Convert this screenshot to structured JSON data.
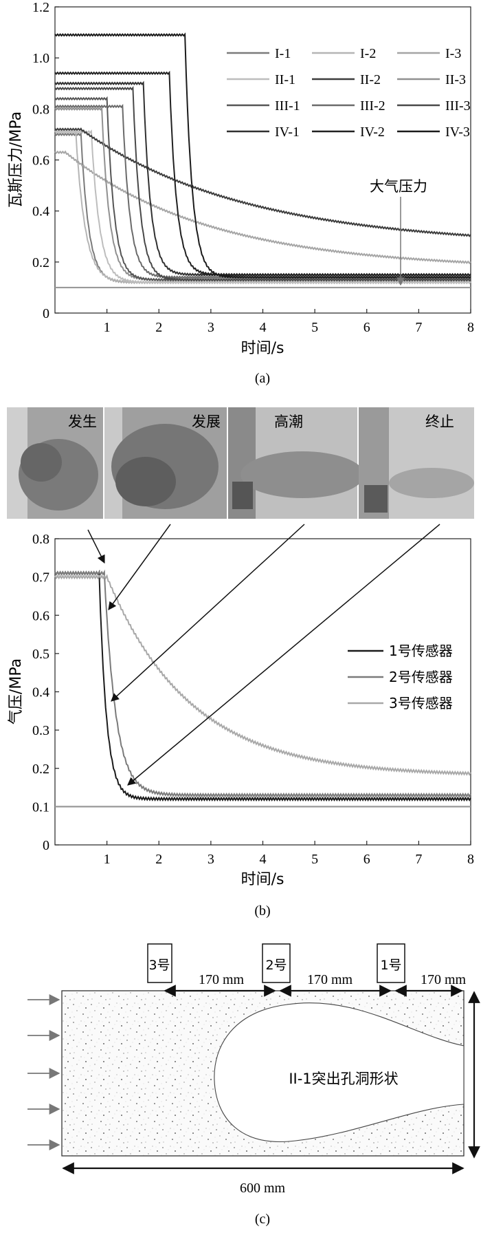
{
  "chart_data": [
    {
      "type": "line",
      "panel_label": "(a)",
      "xlabel": "时间/s",
      "ylabel": "瓦斯压力/MPa",
      "xlim": [
        0,
        8
      ],
      "ylim": [
        0,
        1.2
      ],
      "xticks": [
        "1",
        "2",
        "3",
        "4",
        "5",
        "6",
        "7",
        "8"
      ],
      "yticks": [
        "0",
        "0.2",
        "0.4",
        "0.6",
        "0.8",
        "1.0",
        "1.2"
      ],
      "annotation": "大气压力",
      "atmospheric_pressure": 0.1,
      "legend_position": "top-right",
      "series": [
        {
          "name": "I-1",
          "color": "#7a7a7a",
          "p0": 0.7,
          "t0": 0.5,
          "tau": 0.15,
          "final": 0.12
        },
        {
          "name": "I-2",
          "color": "#b5b5b5",
          "p0": 0.71,
          "t0": 0.4,
          "tau": 0.18,
          "final": 0.12
        },
        {
          "name": "I-3",
          "color": "#a5a5a5",
          "p0": 0.63,
          "t0": 0.2,
          "tau": 2.8,
          "final": 0.17
        },
        {
          "name": "II-1",
          "color": "#bdbdbd",
          "p0": 0.71,
          "t0": 0.7,
          "tau": 0.16,
          "final": 0.12
        },
        {
          "name": "II-2",
          "color": "#3c3c3c",
          "p0": 0.72,
          "t0": 0.5,
          "tau": 3.2,
          "final": 0.26
        },
        {
          "name": "II-3",
          "color": "#909090",
          "p0": 0.8,
          "t0": 0.9,
          "tau": 0.15,
          "final": 0.13
        },
        {
          "name": "III-1",
          "color": "#555555",
          "p0": 0.84,
          "t0": 1.0,
          "tau": 0.14,
          "final": 0.13
        },
        {
          "name": "III-2",
          "color": "#6a6a6a",
          "p0": 0.81,
          "t0": 1.3,
          "tau": 0.14,
          "final": 0.14
        },
        {
          "name": "III-3",
          "color": "#484848",
          "p0": 0.88,
          "t0": 1.5,
          "tau": 0.14,
          "final": 0.13
        },
        {
          "name": "IV-1",
          "color": "#303030",
          "p0": 0.9,
          "t0": 1.7,
          "tau": 0.14,
          "final": 0.15
        },
        {
          "name": "IV-2",
          "color": "#202020",
          "p0": 0.94,
          "t0": 2.2,
          "tau": 0.14,
          "final": 0.15
        },
        {
          "name": "IV-3",
          "color": "#1a1a1a",
          "p0": 1.09,
          "t0": 2.5,
          "tau": 0.14,
          "final": 0.14
        }
      ]
    },
    {
      "type": "line",
      "panel_label": "(b)",
      "xlabel": "时间/s",
      "ylabel": "气压/MPa",
      "xlim": [
        0,
        8
      ],
      "ylim": [
        0,
        0.8
      ],
      "xticks": [
        "1",
        "2",
        "3",
        "4",
        "5",
        "6",
        "7",
        "8"
      ],
      "yticks": [
        "0",
        "0.1",
        "0.2",
        "0.3",
        "0.4",
        "0.5",
        "0.6",
        "0.7",
        "0.8"
      ],
      "atmospheric_pressure": 0.1,
      "legend_position": "right",
      "series": [
        {
          "name": "1号传感器",
          "color": "#1a1a1a",
          "p0": 0.71,
          "t0": 0.85,
          "tau": 0.14,
          "final": 0.12
        },
        {
          "name": "2号传感器",
          "color": "#7a7a7a",
          "p0": 0.71,
          "t0": 0.95,
          "tau": 0.22,
          "final": 0.13
        },
        {
          "name": "3号传感器",
          "color": "#a8a8a8",
          "p0": 0.7,
          "t0": 1.0,
          "tau": 1.6,
          "final": 0.18
        }
      ],
      "stage_photos": [
        "发生",
        "发展",
        "高潮",
        "终止"
      ],
      "stage_points": [
        {
          "stage": "发生",
          "x": 0.85,
          "y": 0.71
        },
        {
          "stage": "发展",
          "x": 1.0,
          "y": 0.6
        },
        {
          "stage": "高潮",
          "x": 0.95,
          "y": 0.38
        },
        {
          "stage": "终止",
          "x": 1.25,
          "y": 0.13
        }
      ]
    }
  ],
  "diagram_c": {
    "panel_label": "(c)",
    "sensor_labels": [
      "3号",
      "2号",
      "1号"
    ],
    "spacing_labels": [
      "170 mm",
      "170 mm",
      "170 mm"
    ],
    "length_label": "600 mm",
    "cavity_label": "II-1突出孔洞形状"
  }
}
